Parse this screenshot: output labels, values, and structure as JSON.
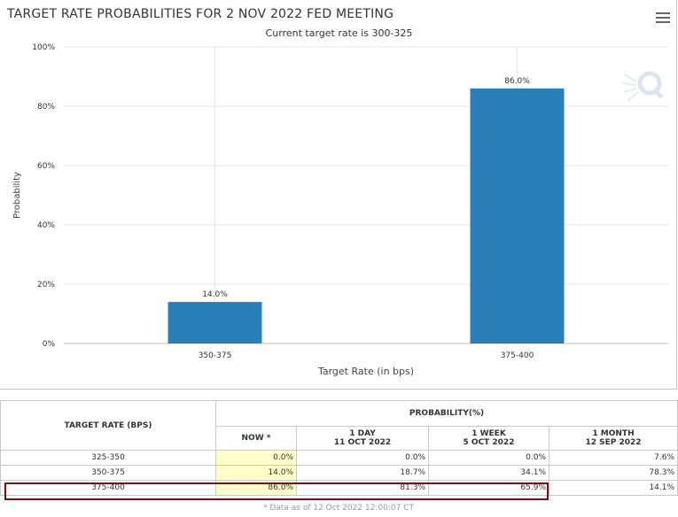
{
  "chart_title": "TARGET RATE PROBABILITIES FOR 2 NOV 2022 FED MEETING",
  "chart_subtitle": "Current target rate is 300-325",
  "chart_data": {
    "type": "bar",
    "title": "TARGET RATE PROBABILITIES FOR 2 NOV 2022 FED MEETING",
    "subtitle": "Current target rate is 300-325",
    "categories": [
      "350-375",
      "375-400"
    ],
    "values": [
      14.0,
      86.0
    ],
    "data_labels": [
      "14.0%",
      "86.0%"
    ],
    "xlabel": "Target Rate (in bps)",
    "ylabel": "Probability",
    "ylim": [
      0,
      100
    ],
    "yticks": [
      0,
      20,
      40,
      60,
      80,
      100
    ],
    "ytick_labels": [
      "0%",
      "20%",
      "40%",
      "60%",
      "80%",
      "100%"
    ],
    "grid": true,
    "bar_color": "#2b7fb8"
  },
  "table": {
    "header_rate": "TARGET RATE (BPS)",
    "header_prob": "PROBABILITY(%)",
    "col_now": "NOW *",
    "col_1day": "1 DAY",
    "col_1day_date": "11 OCT 2022",
    "col_1week": "1 WEEK",
    "col_1week_date": "5 OCT 2022",
    "col_1month": "1 MONTH",
    "col_1month_date": "12 SEP 2022",
    "rows": [
      {
        "rate": "325-350",
        "now": "0.0%",
        "day": "0.0%",
        "week": "0.0%",
        "month": "7.6%"
      },
      {
        "rate": "350-375",
        "now": "14.0%",
        "day": "18.7%",
        "week": "34.1%",
        "month": "78.3%"
      },
      {
        "rate": "375-400",
        "now": "86.0%",
        "day": "81.3%",
        "week": "65.9%",
        "month": "14.1%"
      }
    ],
    "note": "* Data as of 12 Oct 2022 12:00:07 CT"
  },
  "icons": {
    "menu": "hamburger-menu-icon",
    "watermark": "q-logo-icon"
  },
  "colors": {
    "highlight": "#7b1010",
    "now_bg": "#ffffcc"
  }
}
